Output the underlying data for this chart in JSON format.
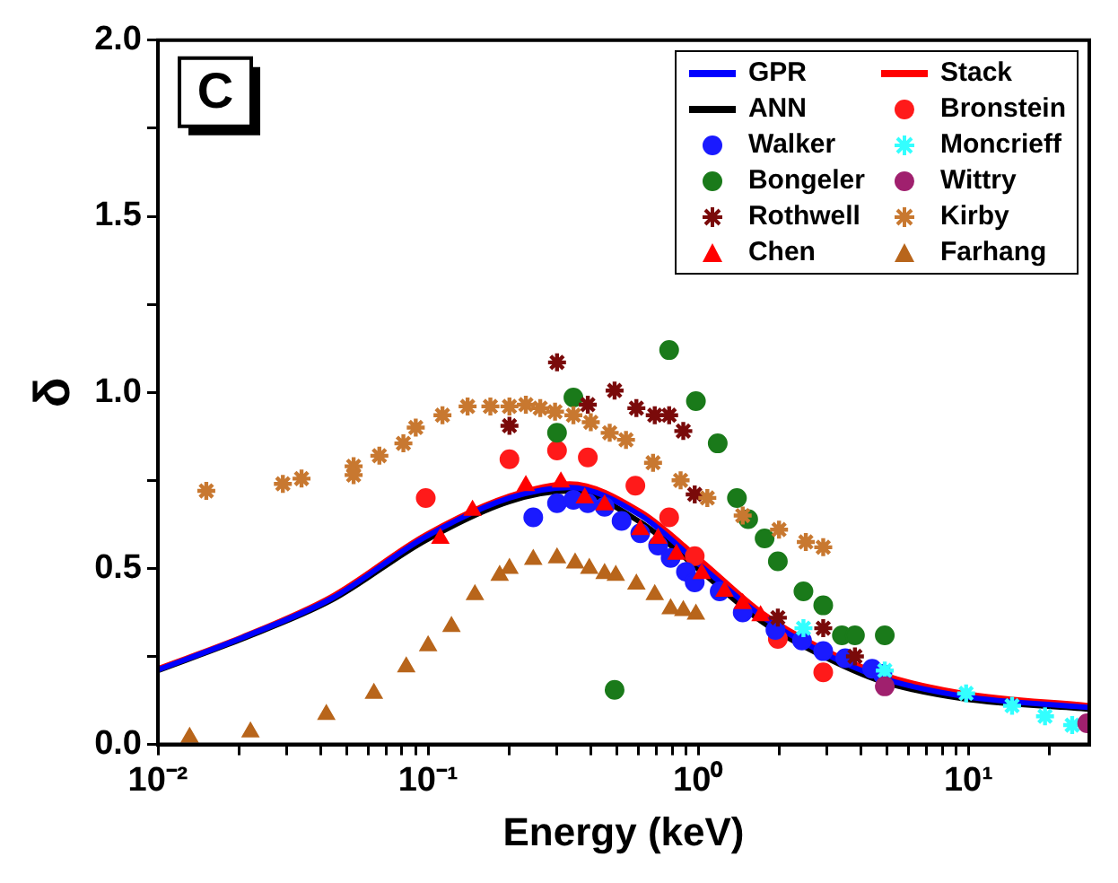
{
  "chart_data": {
    "type": "scatter",
    "xlabel": "Energy (keV)",
    "ylabel": "δ",
    "annotations": [
      "C"
    ],
    "log": "x",
    "xlim": [
      0.01,
      28
    ],
    "ylim": [
      0,
      2
    ],
    "xticks": [
      {
        "value": 0.01,
        "label": "10⁻²"
      },
      {
        "value": 0.02,
        "label": null
      },
      {
        "value": 0.03,
        "label": null
      },
      {
        "value": 0.04,
        "label": null
      },
      {
        "value": 0.05,
        "label": null
      },
      {
        "value": 0.06,
        "label": null
      },
      {
        "value": 0.07,
        "label": null
      },
      {
        "value": 0.08,
        "label": null
      },
      {
        "value": 0.09,
        "label": null
      },
      {
        "value": 0.1,
        "label": "10⁻¹"
      },
      {
        "value": 0.2,
        "label": null
      },
      {
        "value": 0.3,
        "label": null
      },
      {
        "value": 0.4,
        "label": null
      },
      {
        "value": 0.5,
        "label": null
      },
      {
        "value": 0.6,
        "label": null
      },
      {
        "value": 0.7,
        "label": null
      },
      {
        "value": 0.8,
        "label": null
      },
      {
        "value": 0.9,
        "label": null
      },
      {
        "value": 1,
        "label": "10⁰"
      },
      {
        "value": 2,
        "label": null
      },
      {
        "value": 3,
        "label": null
      },
      {
        "value": 4,
        "label": null
      },
      {
        "value": 5,
        "label": null
      },
      {
        "value": 6,
        "label": null
      },
      {
        "value": 7,
        "label": null
      },
      {
        "value": 8,
        "label": null
      },
      {
        "value": 9,
        "label": null
      },
      {
        "value": 10,
        "label": "10¹"
      },
      {
        "value": 20,
        "label": null
      }
    ],
    "yticks": [
      {
        "value": 0,
        "label": "0.0"
      },
      {
        "value": 0.25,
        "label": null
      },
      {
        "value": 0.5,
        "label": "0.5"
      },
      {
        "value": 0.75,
        "label": null
      },
      {
        "value": 1,
        "label": "1.0"
      },
      {
        "value": 1.25,
        "label": null
      },
      {
        "value": 1.5,
        "label": "1.5"
      },
      {
        "value": 1.75,
        "label": null
      },
      {
        "value": 2,
        "label": "2.0"
      }
    ],
    "legend": "top right",
    "grid": false,
    "series": [
      {
        "name": "GPR",
        "type": "line",
        "marker": "none",
        "color": "#0000ff",
        "x": [
          0.01,
          0.0205,
          0.044,
          0.098,
          0.2,
          0.334,
          0.613,
          1.03,
          1.71,
          2.82,
          4.73,
          9.55,
          28
        ],
        "values": [
          0.212,
          0.303,
          0.415,
          0.59,
          0.7,
          0.73,
          0.65,
          0.505,
          0.365,
          0.265,
          0.19,
          0.137,
          0.105
        ]
      },
      {
        "name": "Stack",
        "type": "line",
        "marker": "none",
        "color": "#ff0000",
        "x": [
          0.01,
          0.0205,
          0.044,
          0.098,
          0.2,
          0.334,
          0.613,
          1.03,
          1.71,
          2.82,
          4.73,
          9.55,
          28
        ],
        "values": [
          0.215,
          0.305,
          0.42,
          0.595,
          0.705,
          0.74,
          0.66,
          0.52,
          0.375,
          0.275,
          0.2,
          0.145,
          0.11
        ]
      },
      {
        "name": "ANN",
        "type": "line",
        "marker": "none",
        "color": "#000000",
        "x": [
          0.01,
          0.0205,
          0.044,
          0.098,
          0.2,
          0.334,
          0.613,
          1.03,
          1.71,
          2.82,
          4.73,
          9.55,
          28
        ],
        "values": [
          0.21,
          0.3,
          0.41,
          0.58,
          0.69,
          0.72,
          0.63,
          0.49,
          0.35,
          0.255,
          0.18,
          0.13,
          0.1
        ]
      },
      {
        "name": "Bronstein",
        "marker": "circle",
        "color": "#ff1a1a",
        "x": [
          0.098,
          0.2,
          0.3,
          0.39,
          0.585,
          0.78,
          0.97,
          1.97,
          2.9
        ],
        "values": [
          0.7,
          0.81,
          0.835,
          0.815,
          0.735,
          0.645,
          0.535,
          0.3,
          0.205
        ]
      },
      {
        "name": "Walker",
        "marker": "circle",
        "color": "#1a1aff",
        "x": [
          0.245,
          0.3,
          0.345,
          0.39,
          0.45,
          0.52,
          0.61,
          0.71,
          0.79,
          0.9,
          0.97,
          1.2,
          1.46,
          1.93,
          2.42,
          2.9,
          3.5,
          4.4,
          4.8
        ],
        "values": [
          0.645,
          0.685,
          0.695,
          0.685,
          0.675,
          0.635,
          0.6,
          0.565,
          0.53,
          0.49,
          0.46,
          0.435,
          0.375,
          0.325,
          0.295,
          0.265,
          0.245,
          0.215,
          0.2
        ]
      },
      {
        "name": "Moncrieff",
        "marker": "cross",
        "color": "#33ffff",
        "x": [
          2.45,
          4.9,
          9.8,
          14.5,
          19.2,
          24.2
        ],
        "values": [
          0.33,
          0.21,
          0.145,
          0.11,
          0.08,
          0.055
        ]
      },
      {
        "name": "Bongeler",
        "marker": "circle",
        "color": "#1a7a1a",
        "x": [
          0.3,
          0.345,
          0.49,
          0.78,
          0.98,
          1.18,
          1.39,
          1.53,
          1.76,
          1.97,
          2.45,
          2.9,
          3.4,
          3.8,
          4.9
        ],
        "values": [
          0.885,
          0.985,
          0.155,
          1.12,
          0.975,
          0.855,
          0.7,
          0.64,
          0.585,
          0.52,
          0.435,
          0.395,
          0.31,
          0.31,
          0.31
        ]
      },
      {
        "name": "Wittry",
        "marker": "circle",
        "color": "#a0206e",
        "x": [
          4.9,
          27.5
        ],
        "values": [
          0.165,
          0.06
        ]
      },
      {
        "name": "Rothwell",
        "marker": "cross",
        "color": "#7a0a0a",
        "x": [
          0.2,
          0.3,
          0.39,
          0.49,
          0.59,
          0.69,
          0.78,
          0.88,
          0.97,
          1.97,
          2.9,
          3.8
        ],
        "values": [
          0.905,
          1.085,
          0.965,
          1.005,
          0.955,
          0.935,
          0.935,
          0.89,
          0.71,
          0.36,
          0.33,
          0.25
        ]
      },
      {
        "name": "Kirby",
        "marker": "cross",
        "color": "#c87830",
        "x": [
          0.0151,
          0.029,
          0.034,
          0.053,
          0.053,
          0.066,
          0.081,
          0.09,
          0.113,
          0.14,
          0.17,
          0.2,
          0.23,
          0.26,
          0.295,
          0.345,
          0.4,
          0.47,
          0.54,
          0.68,
          0.86,
          1.08,
          1.46,
          1.99,
          2.5,
          2.9
        ],
        "values": [
          0.72,
          0.74,
          0.755,
          0.79,
          0.765,
          0.82,
          0.855,
          0.9,
          0.935,
          0.96,
          0.96,
          0.96,
          0.965,
          0.955,
          0.945,
          0.935,
          0.915,
          0.885,
          0.865,
          0.8,
          0.75,
          0.7,
          0.65,
          0.61,
          0.575,
          0.56
        ]
      },
      {
        "name": "Chen",
        "marker": "triangle",
        "color": "#ff0000",
        "x": [
          0.111,
          0.146,
          0.23,
          0.31,
          0.38,
          0.45,
          0.61,
          0.71,
          0.83,
          1.03,
          1.25,
          1.46,
          1.7
        ],
        "values": [
          0.585,
          0.665,
          0.735,
          0.745,
          0.7,
          0.68,
          0.61,
          0.585,
          0.54,
          0.485,
          0.435,
          0.4,
          0.365
        ]
      },
      {
        "name": "Farhang",
        "marker": "triangle",
        "color": "#b8651b",
        "x": [
          0.0131,
          0.022,
          0.042,
          0.063,
          0.083,
          0.1,
          0.122,
          0.149,
          0.184,
          0.2,
          0.245,
          0.3,
          0.35,
          0.395,
          0.45,
          0.495,
          0.59,
          0.69,
          0.79,
          0.88,
          0.98
        ],
        "values": [
          0.02,
          0.035,
          0.085,
          0.145,
          0.22,
          0.28,
          0.335,
          0.425,
          0.48,
          0.5,
          0.525,
          0.53,
          0.515,
          0.5,
          0.485,
          0.48,
          0.455,
          0.425,
          0.385,
          0.38,
          0.37
        ]
      }
    ]
  }
}
